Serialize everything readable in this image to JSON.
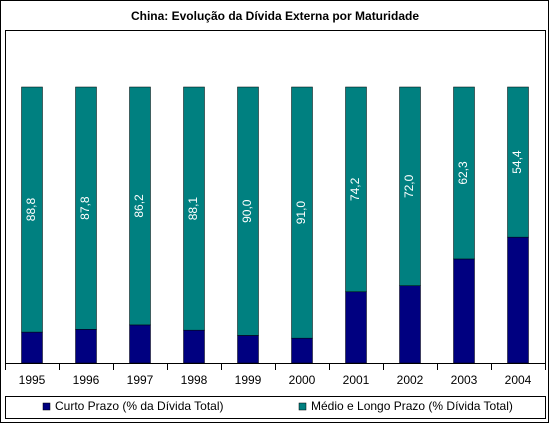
{
  "chart_data": {
    "type": "bar",
    "stacked": true,
    "title": "China: Evolução da Dívida Externa por Maturidade",
    "categories": [
      "1995",
      "1996",
      "1997",
      "1998",
      "1999",
      "2000",
      "2001",
      "2002",
      "2003",
      "2004"
    ],
    "series": [
      {
        "name": "Curto Prazo (% da Dívida Total)",
        "color": "#000080",
        "values": [
          11.2,
          12.2,
          13.8,
          11.9,
          10.0,
          9.0,
          25.8,
          28.0,
          37.7,
          45.6
        ]
      },
      {
        "name": "Médio e Longo Prazo (% Dívida Total)",
        "color": "#008080",
        "values": [
          88.8,
          87.8,
          86.2,
          88.1,
          90.0,
          91.0,
          74.2,
          72.0,
          62.3,
          54.4
        ],
        "value_labels": [
          "88,8",
          "87,8",
          "86,2",
          "88,1",
          "90,0",
          "91,0",
          "74,2",
          "72,0",
          "62,3",
          "54,4"
        ]
      }
    ],
    "ylim": [
      0,
      100
    ],
    "legend": "bottom"
  }
}
